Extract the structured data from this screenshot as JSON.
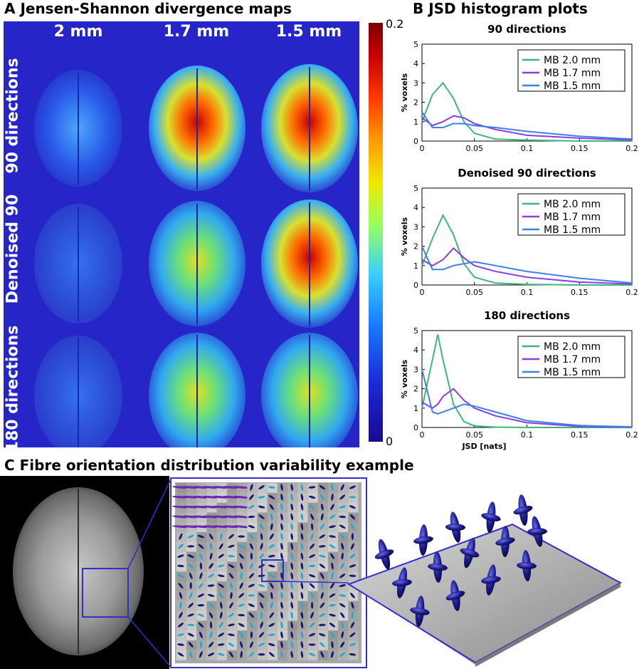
{
  "panel_a": {
    "title": "A Jensen-Shannon divergence maps",
    "columns": [
      "2 mm",
      "1.7 mm",
      "1.5 mm"
    ],
    "rows": [
      "90 directions",
      "Denoised 90",
      "180 directions"
    ],
    "colorbar": {
      "max_label": "0.2",
      "min_label": "0"
    }
  },
  "panel_b": {
    "title": "B JSD histogram plots",
    "xlabel": "JSD [nats]",
    "ylabel": "% voxels",
    "x_ticks": [
      "0",
      "0.05",
      "0.1",
      "0.15",
      "0.2"
    ],
    "y_ticks": [
      "0",
      "1",
      "2",
      "3",
      "4",
      "5"
    ],
    "plots": [
      {
        "title": "90 directions",
        "legend": [
          "MB 2.0 mm",
          "MB 1.7 mm",
          "MB 1.5 mm"
        ]
      },
      {
        "title": "Denoised 90 directions",
        "legend": [
          "MB 2.0 mm",
          "MB 1.7 mm",
          "MB 1.5 mm"
        ]
      },
      {
        "title": "180 directions",
        "legend": [
          "MB 2.0 mm",
          "MB 1.7 mm",
          "MB 1.5 mm"
        ]
      }
    ],
    "series_colors": [
      "#3cb878",
      "#8a3ce6",
      "#3c82e6"
    ]
  },
  "panel_c": {
    "title": "C Fibre orientation distribution variability example"
  },
  "chart_data": [
    {
      "type": "line",
      "title": "90 directions",
      "xlabel": "",
      "ylabel": "% voxels",
      "xlim": [
        0,
        0.2
      ],
      "ylim": [
        0,
        5
      ],
      "x": [
        0,
        0.01,
        0.02,
        0.03,
        0.04,
        0.05,
        0.07,
        0.1,
        0.15,
        0.2
      ],
      "series": [
        {
          "name": "MB 2.0 mm",
          "values": [
            1.0,
            2.4,
            3.0,
            2.2,
            1.0,
            0.4,
            0.1,
            0.05,
            0.0,
            0.0
          ]
        },
        {
          "name": "MB 1.7 mm",
          "values": [
            1.2,
            0.8,
            1.0,
            1.3,
            1.2,
            0.9,
            0.6,
            0.3,
            0.15,
            0.05
          ]
        },
        {
          "name": "MB 1.5 mm",
          "values": [
            1.5,
            0.7,
            0.7,
            0.9,
            0.9,
            0.8,
            0.7,
            0.5,
            0.25,
            0.1
          ]
        }
      ]
    },
    {
      "type": "line",
      "title": "Denoised 90 directions",
      "xlabel": "",
      "ylabel": "% voxels",
      "xlim": [
        0,
        0.2
      ],
      "ylim": [
        0,
        5
      ],
      "x": [
        0,
        0.01,
        0.02,
        0.03,
        0.04,
        0.05,
        0.07,
        0.1,
        0.15,
        0.2
      ],
      "series": [
        {
          "name": "MB 2.0 mm",
          "values": [
            1.0,
            2.4,
            3.6,
            2.6,
            1.1,
            0.4,
            0.1,
            0.03,
            0.0,
            0.0
          ]
        },
        {
          "name": "MB 1.7 mm",
          "values": [
            1.3,
            1.0,
            1.3,
            1.9,
            1.4,
            1.0,
            0.7,
            0.4,
            0.15,
            0.05
          ]
        },
        {
          "name": "MB 1.5 mm",
          "values": [
            2.0,
            0.8,
            0.8,
            1.0,
            1.1,
            1.2,
            1.0,
            0.7,
            0.35,
            0.1
          ]
        }
      ]
    },
    {
      "type": "line",
      "title": "180 directions",
      "xlabel": "JSD [nats]",
      "ylabel": "% voxels",
      "xlim": [
        0,
        0.2
      ],
      "ylim": [
        0,
        5
      ],
      "x": [
        0,
        0.01,
        0.015,
        0.02,
        0.03,
        0.04,
        0.05,
        0.07,
        0.1,
        0.15,
        0.2
      ],
      "series": [
        {
          "name": "MB 2.0 mm",
          "values": [
            1.0,
            3.5,
            4.8,
            3.5,
            1.2,
            0.3,
            0.08,
            0.02,
            0.0,
            0.0,
            0.0
          ]
        },
        {
          "name": "MB 1.7 mm",
          "values": [
            1.3,
            1.0,
            1.2,
            1.6,
            2.0,
            1.4,
            1.0,
            0.6,
            0.25,
            0.05,
            0.02
          ]
        },
        {
          "name": "MB 1.5 mm",
          "values": [
            3.0,
            0.8,
            0.7,
            0.8,
            1.0,
            1.2,
            1.1,
            0.8,
            0.35,
            0.1,
            0.03
          ]
        }
      ]
    }
  ]
}
